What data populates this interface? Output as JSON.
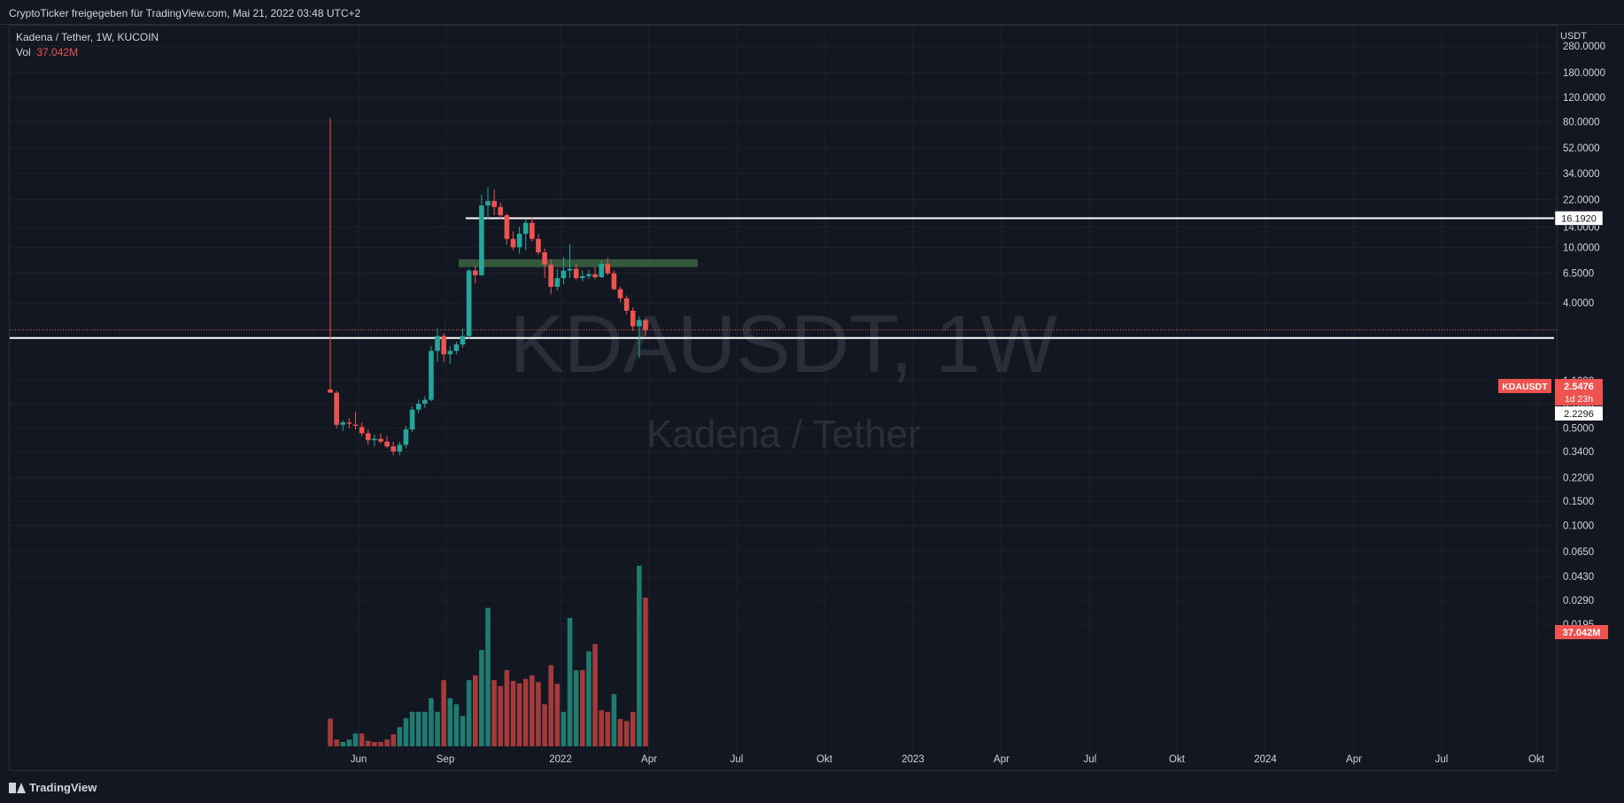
{
  "header": {
    "text": "CryptoTicker freigegeben für TradingView.com, Mai 21, 2022 03:48 UTC+2"
  },
  "legend": {
    "symbol": "Kadena / Tether, 1W, KUCOIN",
    "vol_label": "Vol",
    "vol_value": "37.042M"
  },
  "watermark": {
    "ticker": "KDAUSDT, 1W",
    "name": "Kadena / Tether"
  },
  "footer": {
    "brand": "TradingView"
  },
  "colors": {
    "up": "#26a69a",
    "down": "#ef5350",
    "background": "#131722",
    "grid": "#1e222d",
    "zone": "#3a5f3f"
  },
  "chart_data": {
    "type": "candlestick",
    "scale": "log",
    "currency_label": "USDT",
    "y_ticks": [
      "280.0000",
      "180.0000",
      "120.0000",
      "80.0000",
      "52.0000",
      "34.0000",
      "22.0000",
      "14.0000",
      "10.0000",
      "6.5000",
      "4.0000",
      "1.1000",
      "0.7500",
      "0.5000",
      "0.3400",
      "0.2200",
      "0.1500",
      "0.1000",
      "0.0650",
      "0.0430",
      "0.0290",
      "0.0195"
    ],
    "x_ticks": [
      "Jun",
      "Sep",
      "2022",
      "Apr",
      "Jul",
      "Okt",
      "2023",
      "Apr",
      "Jul",
      "Okt",
      "2024",
      "Apr",
      "Jul",
      "Okt"
    ],
    "price_labels": {
      "current_symbol": "KDAUSDT",
      "current_price": "2.5476",
      "countdown": "1d 23h",
      "support_level": "2.2296",
      "resistance_level": "16.1920",
      "volume": "37.042M"
    },
    "horizontal_lines": [
      {
        "name": "resistance",
        "value": 16.192
      },
      {
        "name": "support",
        "value": 2.2296
      }
    ],
    "zone": {
      "from_week": 19,
      "to_week": 47,
      "low": 7.2,
      "high": 8.2
    },
    "candles": [
      {
        "week": 0,
        "o": 0.95,
        "h": 85,
        "l": 0.93,
        "c": 0.9
      },
      {
        "week": 1,
        "o": 0.9,
        "h": 0.93,
        "l": 0.5,
        "c": 0.53
      },
      {
        "week": 2,
        "o": 0.53,
        "h": 0.57,
        "l": 0.48,
        "c": 0.55
      },
      {
        "week": 3,
        "o": 0.55,
        "h": 0.59,
        "l": 0.5,
        "c": 0.54
      },
      {
        "week": 4,
        "o": 0.53,
        "h": 0.66,
        "l": 0.49,
        "c": 0.52
      },
      {
        "week": 5,
        "o": 0.51,
        "h": 0.55,
        "l": 0.44,
        "c": 0.46
      },
      {
        "week": 6,
        "o": 0.46,
        "h": 0.49,
        "l": 0.38,
        "c": 0.41
      },
      {
        "week": 7,
        "o": 0.41,
        "h": 0.45,
        "l": 0.37,
        "c": 0.42
      },
      {
        "week": 8,
        "o": 0.42,
        "h": 0.46,
        "l": 0.39,
        "c": 0.4
      },
      {
        "week": 9,
        "o": 0.4,
        "h": 0.44,
        "l": 0.36,
        "c": 0.37
      },
      {
        "week": 10,
        "o": 0.37,
        "h": 0.4,
        "l": 0.32,
        "c": 0.34
      },
      {
        "week": 11,
        "o": 0.34,
        "h": 0.4,
        "l": 0.32,
        "c": 0.38
      },
      {
        "week": 12,
        "o": 0.38,
        "h": 0.52,
        "l": 0.36,
        "c": 0.49
      },
      {
        "week": 13,
        "o": 0.49,
        "h": 0.72,
        "l": 0.47,
        "c": 0.68
      },
      {
        "week": 14,
        "o": 0.68,
        "h": 0.8,
        "l": 0.64,
        "c": 0.75
      },
      {
        "week": 15,
        "o": 0.75,
        "h": 0.85,
        "l": 0.7,
        "c": 0.8
      },
      {
        "week": 16,
        "o": 0.8,
        "h": 1.95,
        "l": 0.78,
        "c": 1.8
      },
      {
        "week": 17,
        "o": 1.8,
        "h": 2.6,
        "l": 1.5,
        "c": 2.3
      },
      {
        "week": 18,
        "o": 2.3,
        "h": 2.4,
        "l": 1.5,
        "c": 1.7
      },
      {
        "week": 19,
        "o": 1.7,
        "h": 1.95,
        "l": 1.45,
        "c": 1.8
      },
      {
        "week": 20,
        "o": 1.8,
        "h": 2.1,
        "l": 1.7,
        "c": 2.0
      },
      {
        "week": 21,
        "o": 2.0,
        "h": 2.6,
        "l": 1.9,
        "c": 2.3
      },
      {
        "week": 22,
        "o": 2.3,
        "h": 7.0,
        "l": 2.2,
        "c": 6.8
      },
      {
        "week": 23,
        "o": 6.8,
        "h": 7.4,
        "l": 5.5,
        "c": 6.3
      },
      {
        "week": 24,
        "o": 6.3,
        "h": 24.0,
        "l": 6.2,
        "c": 20.0
      },
      {
        "week": 25,
        "o": 20.0,
        "h": 27.0,
        "l": 16.0,
        "c": 21.5
      },
      {
        "week": 26,
        "o": 21.5,
        "h": 26.0,
        "l": 17.0,
        "c": 19.5
      },
      {
        "week": 27,
        "o": 19.5,
        "h": 21.0,
        "l": 16.0,
        "c": 17.0
      },
      {
        "week": 28,
        "o": 17.0,
        "h": 17.5,
        "l": 10.5,
        "c": 11.5
      },
      {
        "week": 29,
        "o": 11.5,
        "h": 13.0,
        "l": 9.5,
        "c": 10.0
      },
      {
        "week": 30,
        "o": 10.0,
        "h": 14.0,
        "l": 9.0,
        "c": 12.5
      },
      {
        "week": 31,
        "o": 12.5,
        "h": 16.0,
        "l": 9.5,
        "c": 15.0
      },
      {
        "week": 32,
        "o": 15.0,
        "h": 16.5,
        "l": 11.0,
        "c": 11.5
      },
      {
        "week": 33,
        "o": 11.5,
        "h": 12.5,
        "l": 8.8,
        "c": 9.2
      },
      {
        "week": 34,
        "o": 9.2,
        "h": 9.8,
        "l": 6.0,
        "c": 7.5
      },
      {
        "week": 35,
        "o": 7.5,
        "h": 8.2,
        "l": 4.6,
        "c": 5.2
      },
      {
        "week": 36,
        "o": 5.2,
        "h": 7.0,
        "l": 4.9,
        "c": 6.0
      },
      {
        "week": 37,
        "o": 6.0,
        "h": 8.5,
        "l": 5.4,
        "c": 6.8
      },
      {
        "week": 38,
        "o": 6.8,
        "h": 10.5,
        "l": 6.0,
        "c": 7.0
      },
      {
        "week": 39,
        "o": 7.0,
        "h": 7.6,
        "l": 5.8,
        "c": 6.0
      },
      {
        "week": 40,
        "o": 6.0,
        "h": 6.8,
        "l": 5.7,
        "c": 6.2
      },
      {
        "week": 41,
        "o": 6.2,
        "h": 6.9,
        "l": 5.9,
        "c": 6.4
      },
      {
        "week": 42,
        "o": 6.4,
        "h": 7.2,
        "l": 5.9,
        "c": 6.1
      },
      {
        "week": 43,
        "o": 6.1,
        "h": 8.0,
        "l": 6.0,
        "c": 7.6
      },
      {
        "week": 44,
        "o": 7.6,
        "h": 8.4,
        "l": 6.3,
        "c": 6.5
      },
      {
        "week": 45,
        "o": 6.5,
        "h": 6.8,
        "l": 4.9,
        "c": 5.0
      },
      {
        "week": 46,
        "o": 5.0,
        "h": 5.2,
        "l": 4.0,
        "c": 4.3
      },
      {
        "week": 47,
        "o": 4.3,
        "h": 4.5,
        "l": 3.3,
        "c": 3.5
      },
      {
        "week": 48,
        "o": 3.5,
        "h": 3.7,
        "l": 2.5,
        "c": 2.7
      },
      {
        "week": 49,
        "o": 2.7,
        "h": 3.2,
        "l": 1.6,
        "c": 3.0
      },
      {
        "week": 50,
        "o": 3.0,
        "h": 3.1,
        "l": 2.3,
        "c": 2.55
      }
    ],
    "volume": [
      {
        "week": 0,
        "v": 6.9,
        "dir": "down"
      },
      {
        "week": 1,
        "v": 1.7,
        "dir": "down"
      },
      {
        "week": 2,
        "v": 1.1,
        "dir": "up"
      },
      {
        "week": 3,
        "v": 1.7,
        "dir": "up"
      },
      {
        "week": 4,
        "v": 3.2,
        "dir": "up"
      },
      {
        "week": 5,
        "v": 3.2,
        "dir": "down"
      },
      {
        "week": 6,
        "v": 1.4,
        "dir": "down"
      },
      {
        "week": 7,
        "v": 1.1,
        "dir": "down"
      },
      {
        "week": 8,
        "v": 1.1,
        "dir": "down"
      },
      {
        "week": 9,
        "v": 1.7,
        "dir": "down"
      },
      {
        "week": 10,
        "v": 3.0,
        "dir": "down"
      },
      {
        "week": 11,
        "v": 4.8,
        "dir": "up"
      },
      {
        "week": 12,
        "v": 7.0,
        "dir": "up"
      },
      {
        "week": 13,
        "v": 8.6,
        "dir": "up"
      },
      {
        "week": 14,
        "v": 8.6,
        "dir": "up"
      },
      {
        "week": 15,
        "v": 8.6,
        "dir": "up"
      },
      {
        "week": 16,
        "v": 12.0,
        "dir": "up"
      },
      {
        "week": 17,
        "v": 8.6,
        "dir": "up"
      },
      {
        "week": 18,
        "v": 16.5,
        "dir": "down"
      },
      {
        "week": 19,
        "v": 12.0,
        "dir": "up"
      },
      {
        "week": 20,
        "v": 10.5,
        "dir": "up"
      },
      {
        "week": 21,
        "v": 7.6,
        "dir": "up"
      },
      {
        "week": 22,
        "v": 16.5,
        "dir": "up"
      },
      {
        "week": 23,
        "v": 17.7,
        "dir": "down"
      },
      {
        "week": 24,
        "v": 24.0,
        "dir": "up"
      },
      {
        "week": 25,
        "v": 34.5,
        "dir": "up"
      },
      {
        "week": 26,
        "v": 16.5,
        "dir": "down"
      },
      {
        "week": 27,
        "v": 15.0,
        "dir": "down"
      },
      {
        "week": 28,
        "v": 19.0,
        "dir": "down"
      },
      {
        "week": 29,
        "v": 16.3,
        "dir": "down"
      },
      {
        "week": 30,
        "v": 15.7,
        "dir": "down"
      },
      {
        "week": 31,
        "v": 16.8,
        "dir": "down"
      },
      {
        "week": 32,
        "v": 17.7,
        "dir": "down"
      },
      {
        "week": 33,
        "v": 16.0,
        "dir": "down"
      },
      {
        "week": 34,
        "v": 10.5,
        "dir": "down"
      },
      {
        "week": 35,
        "v": 20.2,
        "dir": "down"
      },
      {
        "week": 36,
        "v": 15.6,
        "dir": "down"
      },
      {
        "week": 37,
        "v": 8.6,
        "dir": "up"
      },
      {
        "week": 38,
        "v": 32.0,
        "dir": "up"
      },
      {
        "week": 39,
        "v": 19.0,
        "dir": "up"
      },
      {
        "week": 40,
        "v": 19.0,
        "dir": "down"
      },
      {
        "week": 41,
        "v": 23.7,
        "dir": "up"
      },
      {
        "week": 42,
        "v": 25.5,
        "dir": "down"
      },
      {
        "week": 43,
        "v": 9.0,
        "dir": "down"
      },
      {
        "week": 44,
        "v": 8.6,
        "dir": "down"
      },
      {
        "week": 45,
        "v": 13.0,
        "dir": "up"
      },
      {
        "week": 46,
        "v": 6.8,
        "dir": "down"
      },
      {
        "week": 47,
        "v": 6.3,
        "dir": "down"
      },
      {
        "week": 48,
        "v": 8.6,
        "dir": "down"
      },
      {
        "week": 49,
        "v": 45.0,
        "dir": "up"
      },
      {
        "week": 50,
        "v": 37.042,
        "dir": "down"
      }
    ]
  }
}
